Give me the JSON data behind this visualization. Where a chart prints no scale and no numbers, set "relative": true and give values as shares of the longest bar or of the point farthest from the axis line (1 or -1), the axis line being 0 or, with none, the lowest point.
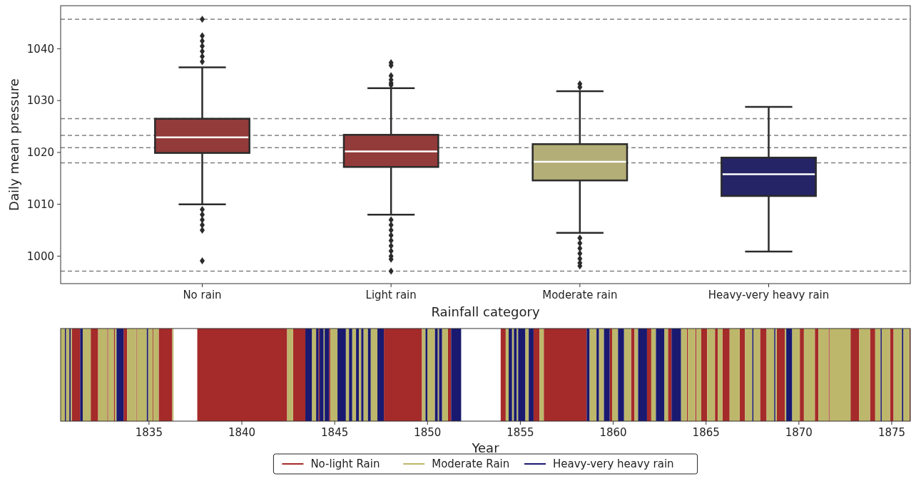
{
  "chart_data": [
    {
      "type": "box",
      "xlabel": "Rainfall category",
      "ylabel": "Daily mean pressure",
      "categories": [
        "No rain",
        "Light rain",
        "Moderate rain",
        "Heavy-very heavy rain"
      ],
      "colors": [
        "#933a3a",
        "#933a3a",
        "#b3ad77",
        "#252466"
      ],
      "boxes": [
        {
          "low": 1010.0,
          "q1": 1019.9,
          "median": 1022.9,
          "q3": 1026.5,
          "high": 1036.4,
          "outliers": [
            1045.7,
            1042.5,
            1041.5,
            1040.5,
            1039.5,
            1038.5,
            1037.5,
            1009.0,
            1008.0,
            1007.0,
            1006.0,
            1005.0,
            999.1
          ]
        },
        {
          "low": 1008.0,
          "q1": 1017.2,
          "median": 1020.2,
          "q3": 1023.4,
          "high": 1032.4,
          "outliers": [
            1037.3,
            1036.8,
            1034.8,
            1034.0,
            1033.4,
            1033.0,
            1007.0,
            1006.0,
            1005.0,
            1004.0,
            1003.0,
            1002.0,
            1001.0,
            1000.0,
            999.4,
            997.1
          ]
        },
        {
          "low": 1004.5,
          "q1": 1014.6,
          "median": 1018.2,
          "q3": 1021.6,
          "high": 1031.8,
          "outliers": [
            1033.2,
            1032.6,
            1003.5,
            1002.5,
            1001.5,
            1000.5,
            999.5,
            998.7,
            998.1
          ]
        },
        {
          "low": 1000.9,
          "q1": 1011.6,
          "median": 1015.8,
          "q3": 1019.0,
          "high": 1028.8
        }
      ],
      "ylim": [
        994.7,
        1048.3
      ],
      "yticks": [
        1000,
        1010,
        1020,
        1030,
        1040
      ],
      "ref_lines": [
        {
          "axis": "y",
          "value": 1045.7,
          "color": "#808080",
          "line_style": "dashed"
        },
        {
          "axis": "y",
          "value": 1026.5,
          "color": "#808080",
          "line_style": "dashed"
        },
        {
          "axis": "y",
          "value": 1023.3,
          "color": "#808080",
          "line_style": "dashed"
        },
        {
          "axis": "y",
          "value": 1020.9,
          "color": "#808080",
          "line_style": "dashed"
        },
        {
          "axis": "y",
          "value": 1018.0,
          "color": "#808080",
          "line_style": "dashed"
        },
        {
          "axis": "y",
          "value": 997.1,
          "color": "#808080",
          "line_style": "dashed"
        }
      ]
    },
    {
      "type": "area",
      "relative": true,
      "xlabel": "Year",
      "xlim": [
        1830.24,
        1876.0
      ],
      "xticks": [
        1835,
        1840,
        1845,
        1850,
        1855,
        1860,
        1865,
        1870,
        1875
      ],
      "tick_labels": "x",
      "legend": "bottom",
      "series": [
        {
          "name": "No-light Rain",
          "color": "#a52a2a",
          "x": [
            1830.84,
            1830.84,
            1831.29,
            1831.29,
            1831.86,
            1831.86,
            1832.26,
            1832.26,
            1832.75,
            1832.75,
            1832.8,
            1832.8,
            1833.1,
            1833.1,
            1833.16,
            1833.16,
            1833.63,
            1833.63,
            1833.82,
            1833.82,
            1834.3,
            1834.3,
            1834.34,
            1834.34,
            1835.2,
            1835.2,
            1835.24,
            1835.24,
            1835.52,
            1835.52,
            1836.25,
            1836.25,
            1837.6,
            1837.6,
            1842.44,
            1842.44,
            1842.76,
            1842.76,
            1843.42,
            1843.42,
            1844.13,
            1844.13,
            1844.19,
            1844.19,
            1844.7,
            1844.7,
            1844.77,
            1844.77,
            1847.65,
            1847.65,
            1849.7,
            1849.7,
            1851.1,
            1851.1,
            1851.27,
            1851.27,
            1853.94,
            1853.94,
            1854.21,
            1854.21,
            1855.71,
            1855.71,
            1856.03,
            1856.03,
            1856.26,
            1856.26,
            1858.57,
            1858.57,
            1859.81,
            1859.81,
            1859.94,
            1859.94,
            1860.96,
            1860.96,
            1861.15,
            1861.15,
            1861.82,
            1861.82,
            1862.05,
            1862.05,
            1862.95,
            1862.95,
            1863.14,
            1863.14,
            1863.97,
            1863.97,
            1864.03,
            1864.03,
            1864.42,
            1864.42,
            1864.48,
            1864.48,
            1864.74,
            1864.74,
            1865.06,
            1865.06,
            1865.48,
            1865.48,
            1865.63,
            1865.63,
            1865.89,
            1865.89,
            1866.27,
            1866.27,
            1866.81,
            1866.81,
            1867.1,
            1867.1,
            1867.91,
            1867.91,
            1868.26,
            1868.26,
            1868.81,
            1868.81,
            1869.24,
            1869.24,
            1870.05,
            1870.05,
            1870.27,
            1870.27,
            1870.86,
            1870.86,
            1871.05,
            1871.05,
            1871.6,
            1871.6,
            1871.65,
            1871.65,
            1872.78,
            1872.78,
            1873.25,
            1873.25,
            1873.83,
            1873.83,
            1874.11,
            1874.11,
            1874.91,
            1874.91,
            1875.1,
            1875.1,
            1875.95,
            1875.95,
            1876.0,
            1876.0
          ],
          "values": [
            0,
            1,
            1,
            0,
            0,
            1,
            1,
            0,
            0,
            1,
            1,
            0,
            0,
            1,
            1,
            0,
            0,
            1,
            1,
            0,
            0,
            1,
            1,
            0,
            0,
            1,
            1,
            0,
            0,
            1,
            1,
            0,
            0,
            1,
            1,
            0,
            0,
            1,
            1,
            0,
            0,
            1,
            1,
            0,
            0,
            1,
            1,
            0,
            0,
            1,
            1,
            0,
            0,
            1,
            1,
            0,
            0,
            1,
            1,
            0,
            0,
            1,
            1,
            0,
            0,
            1,
            1,
            0,
            0,
            1,
            1,
            0,
            0,
            1,
            1,
            0,
            0,
            1,
            1,
            0,
            0,
            1,
            1,
            0,
            0,
            1,
            1,
            0,
            0,
            1,
            1,
            0,
            0,
            1,
            1,
            0,
            0,
            1,
            1,
            0,
            0,
            1,
            1,
            0,
            0,
            1,
            1,
            0,
            0,
            1,
            1,
            0,
            0,
            1,
            1,
            0,
            0,
            1,
            1,
            0,
            0,
            1,
            1,
            0,
            0,
            1,
            1,
            0,
            0,
            1,
            1,
            0,
            0,
            1,
            1,
            0,
            0,
            1,
            1,
            0,
            0,
            1,
            1,
            0
          ]
        },
        {
          "name": "Moderate Rain",
          "color": "#bdb76b",
          "x": [
            1830.24,
            1830.24,
            1830.47,
            1830.47,
            1830.53,
            1830.53,
            1830.71,
            1830.71,
            1830.78,
            1830.78,
            1830.84,
            1830.84,
            1831.43,
            1831.43,
            1831.86,
            1831.86,
            1832.26,
            1832.26,
            1832.75,
            1832.75,
            1832.8,
            1832.8,
            1833.1,
            1833.1,
            1833.16,
            1833.16,
            1833.25,
            1833.25,
            1833.82,
            1833.82,
            1834.3,
            1834.3,
            1834.34,
            1834.34,
            1834.88,
            1834.88,
            1834.95,
            1834.95,
            1835.2,
            1835.2,
            1835.24,
            1835.24,
            1835.52,
            1835.52,
            1836.25,
            1836.25,
            1836.32,
            1836.32,
            1842.44,
            1842.44,
            1842.76,
            1842.76,
            1843.77,
            1843.77,
            1844.0,
            1844.0,
            1844.4,
            1844.4,
            1844.46,
            1844.46,
            1844.77,
            1844.77,
            1845.15,
            1845.15,
            1845.6,
            1845.6,
            1845.77,
            1845.77,
            1845.94,
            1845.94,
            1846.15,
            1846.15,
            1846.3,
            1846.3,
            1846.43,
            1846.43,
            1846.55,
            1846.55,
            1846.79,
            1846.79,
            1846.94,
            1846.94,
            1847.3,
            1847.3,
            1849.7,
            1849.7,
            1849.89,
            1849.89,
            1849.99,
            1849.99,
            1850.4,
            1850.4,
            1850.55,
            1850.55,
            1850.62,
            1850.62,
            1850.78,
            1850.78,
            1851.1,
            1851.1,
            1854.21,
            1854.21,
            1854.37,
            1854.37,
            1854.55,
            1854.55,
            1854.65,
            1854.65,
            1854.8,
            1854.8,
            1854.88,
            1854.88,
            1855.26,
            1855.26,
            1855.45,
            1855.45,
            1856.03,
            1856.03,
            1856.26,
            1856.26,
            1858.72,
            1858.72,
            1859.1,
            1859.1,
            1859.23,
            1859.23,
            1859.5,
            1859.5,
            1859.94,
            1859.94,
            1860.26,
            1860.26,
            1860.58,
            1860.58,
            1860.96,
            1860.96,
            1861.15,
            1861.15,
            1861.34,
            1861.34,
            1862.05,
            1862.05,
            1862.3,
            1862.3,
            1862.75,
            1862.75,
            1862.95,
            1862.95,
            1863.65,
            1863.65,
            1863.97,
            1863.97,
            1864.03,
            1864.03,
            1864.42,
            1864.42,
            1864.48,
            1864.48,
            1864.74,
            1864.74,
            1865.06,
            1865.06,
            1865.48,
            1865.48,
            1865.63,
            1865.63,
            1865.89,
            1865.89,
            1866.27,
            1866.27,
            1866.81,
            1866.81,
            1867.1,
            1867.1,
            1867.49,
            1867.49,
            1867.55,
            1867.55,
            1867.91,
            1867.91,
            1868.26,
            1868.26,
            1868.67,
            1868.67,
            1868.73,
            1868.73,
            1868.81,
            1868.81,
            1869.24,
            1869.24,
            1869.32,
            1869.32,
            1869.63,
            1869.63,
            1870.05,
            1870.05,
            1870.27,
            1870.27,
            1870.86,
            1870.86,
            1871.05,
            1871.05,
            1871.6,
            1871.6,
            1871.65,
            1871.65,
            1872.78,
            1872.78,
            1873.25,
            1873.25,
            1873.83,
            1873.83,
            1874.11,
            1874.11,
            1874.4,
            1874.4,
            1874.46,
            1874.46,
            1874.91,
            1874.91,
            1875.1,
            1875.1,
            1875.55,
            1875.55,
            1875.62,
            1875.62,
            1875.95,
            1875.95
          ],
          "values": [
            0,
            1,
            1,
            0,
            0,
            1,
            1,
            0,
            0,
            1,
            1,
            0,
            0,
            1,
            1,
            0,
            0,
            1,
            1,
            0,
            0,
            1,
            1,
            0,
            0,
            1,
            1,
            0,
            0,
            1,
            1,
            0,
            0,
            1,
            1,
            0,
            0,
            1,
            1,
            0,
            0,
            1,
            1,
            0,
            0,
            1,
            1,
            0,
            0,
            1,
            1,
            0,
            0,
            1,
            1,
            0,
            0,
            1,
            1,
            0,
            0,
            1,
            1,
            0,
            0,
            1,
            1,
            0,
            0,
            1,
            1,
            0,
            0,
            1,
            1,
            0,
            0,
            1,
            1,
            0,
            0,
            1,
            1,
            0,
            0,
            1,
            1,
            0,
            0,
            1,
            1,
            0,
            0,
            1,
            1,
            0,
            0,
            1,
            1,
            0,
            0,
            1,
            1,
            0,
            0,
            1,
            1,
            0,
            0,
            1,
            1,
            0,
            0,
            1,
            1,
            0,
            0,
            1,
            1,
            0,
            0,
            1,
            1,
            0,
            0,
            1,
            1,
            0,
            0,
            1,
            1,
            0,
            0,
            1,
            1,
            0,
            0,
            1,
            1,
            0,
            0,
            1,
            1,
            0,
            0,
            1,
            1,
            0,
            0,
            1,
            1,
            0,
            0,
            1,
            1,
            0,
            0,
            1,
            1,
            0,
            0,
            1,
            1,
            0,
            0,
            1,
            1,
            0,
            0,
            1,
            1,
            0,
            0,
            1,
            1,
            0,
            0,
            1,
            1,
            0,
            0,
            1,
            1,
            0,
            0,
            1,
            1,
            0,
            0,
            1,
            1,
            0,
            0,
            1,
            1,
            0,
            0,
            1,
            1,
            0,
            0,
            1,
            1,
            0,
            0,
            1,
            1,
            0,
            0,
            1,
            1,
            0,
            0,
            1,
            1,
            0,
            0,
            1,
            1,
            0,
            0,
            1,
            1,
            0,
            0,
            1,
            1,
            0
          ]
        },
        {
          "name": "Heavy-very heavy rain",
          "color": "#191970",
          "x": [
            1830.47,
            1830.47,
            1830.53,
            1830.53,
            1830.71,
            1830.71,
            1830.78,
            1830.78,
            1831.29,
            1831.29,
            1831.43,
            1831.43,
            1833.25,
            1833.25,
            1833.63,
            1833.63,
            1834.88,
            1834.88,
            1834.95,
            1834.95,
            1843.42,
            1843.42,
            1843.77,
            1843.77,
            1844.0,
            1844.0,
            1844.13,
            1844.13,
            1844.19,
            1844.19,
            1844.4,
            1844.4,
            1844.46,
            1844.46,
            1844.7,
            1844.7,
            1845.15,
            1845.15,
            1845.6,
            1845.6,
            1845.77,
            1845.77,
            1845.94,
            1845.94,
            1846.15,
            1846.15,
            1846.3,
            1846.3,
            1846.43,
            1846.43,
            1846.55,
            1846.55,
            1846.79,
            1846.79,
            1846.94,
            1846.94,
            1847.3,
            1847.3,
            1847.65,
            1847.65,
            1849.89,
            1849.89,
            1849.99,
            1849.99,
            1850.4,
            1850.4,
            1850.55,
            1850.55,
            1850.62,
            1850.62,
            1850.78,
            1850.78,
            1851.27,
            1851.27,
            1851.81,
            1851.81,
            1854.37,
            1854.37,
            1854.55,
            1854.55,
            1854.65,
            1854.65,
            1854.8,
            1854.8,
            1854.88,
            1854.88,
            1855.26,
            1855.26,
            1855.45,
            1855.45,
            1855.71,
            1855.71,
            1858.57,
            1858.57,
            1858.72,
            1858.72,
            1859.1,
            1859.1,
            1859.23,
            1859.23,
            1859.5,
            1859.5,
            1859.81,
            1859.81,
            1860.26,
            1860.26,
            1860.58,
            1860.58,
            1861.34,
            1861.34,
            1861.82,
            1861.82,
            1862.3,
            1862.3,
            1862.75,
            1862.75,
            1863.14,
            1863.14,
            1863.65,
            1863.65,
            1867.49,
            1867.49,
            1867.55,
            1867.55,
            1868.67,
            1868.67,
            1868.73,
            1868.73,
            1869.32,
            1869.32,
            1869.63,
            1869.63,
            1874.4,
            1874.4,
            1874.46,
            1874.46,
            1875.55,
            1875.55,
            1875.62,
            1875.62
          ],
          "values": [
            0,
            1,
            1,
            0,
            0,
            1,
            1,
            0,
            0,
            1,
            1,
            0,
            0,
            1,
            1,
            0,
            0,
            1,
            1,
            0,
            0,
            1,
            1,
            0,
            0,
            1,
            1,
            0,
            0,
            1,
            1,
            0,
            0,
            1,
            1,
            0,
            0,
            1,
            1,
            0,
            0,
            1,
            1,
            0,
            0,
            1,
            1,
            0,
            0,
            1,
            1,
            0,
            0,
            1,
            1,
            0,
            0,
            1,
            1,
            0,
            0,
            1,
            1,
            0,
            0,
            1,
            1,
            0,
            0,
            1,
            1,
            0,
            0,
            1,
            1,
            0,
            0,
            1,
            1,
            0,
            0,
            1,
            1,
            0,
            0,
            1,
            1,
            0,
            0,
            1,
            1,
            0,
            0,
            1,
            1,
            0,
            0,
            1,
            1,
            0,
            0,
            1,
            1,
            0,
            0,
            1,
            1,
            0,
            0,
            1,
            1,
            0,
            0,
            1,
            1,
            0,
            0,
            1,
            1,
            0,
            0,
            1,
            1,
            0,
            0,
            1,
            1,
            0,
            0,
            1,
            1,
            0,
            0,
            1,
            1,
            0,
            0,
            1,
            1,
            0
          ]
        }
      ]
    }
  ]
}
